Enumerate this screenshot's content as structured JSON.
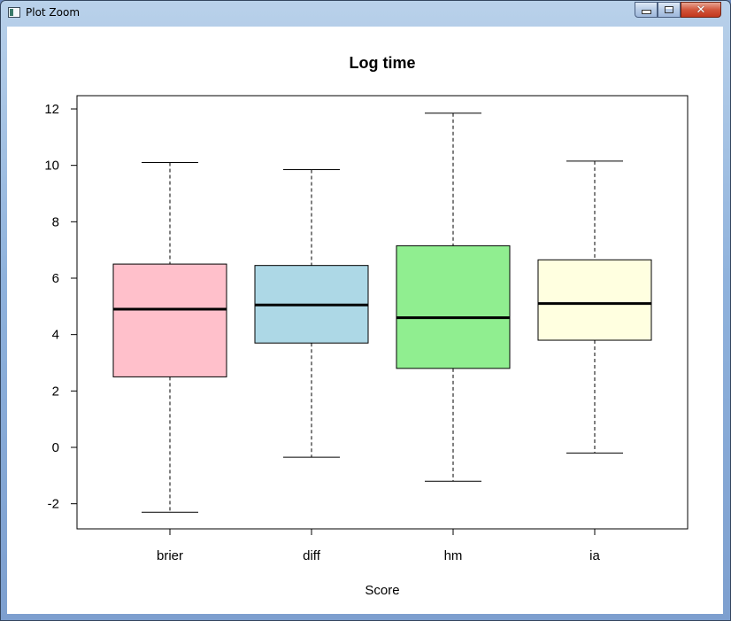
{
  "window": {
    "title": "Plot Zoom",
    "icon": "r-plot-icon",
    "close_glyph": "✕"
  },
  "chart_data": {
    "type": "boxplot",
    "title": "Log time",
    "xlabel": "Score",
    "ylabel": "",
    "categories": [
      "brier",
      "diff",
      "hm",
      "ia"
    ],
    "boxes": [
      {
        "label": "brier",
        "min": -2.3,
        "q1": 2.5,
        "median": 4.9,
        "q3": 6.5,
        "max": 10.1,
        "color": "#FFC0CB"
      },
      {
        "label": "diff",
        "min": -0.35,
        "q1": 3.7,
        "median": 5.05,
        "q3": 6.45,
        "max": 9.85,
        "color": "#ADD8E6"
      },
      {
        "label": "hm",
        "min": -1.2,
        "q1": 2.8,
        "median": 4.6,
        "q3": 7.15,
        "max": 11.85,
        "color": "#90EE90"
      },
      {
        "label": "ia",
        "min": -0.2,
        "q1": 3.8,
        "median": 5.1,
        "q3": 6.65,
        "max": 10.15,
        "color": "#FFFFE0"
      }
    ],
    "y_ticks": [
      -2,
      0,
      2,
      4,
      6,
      8,
      10,
      12
    ],
    "y_tick_labels": [
      "-2",
      "0",
      "2",
      "4",
      "6",
      "8",
      "10",
      "12"
    ],
    "ylim": [
      -2.9,
      12.5
    ],
    "grid": false,
    "legend": "none"
  }
}
